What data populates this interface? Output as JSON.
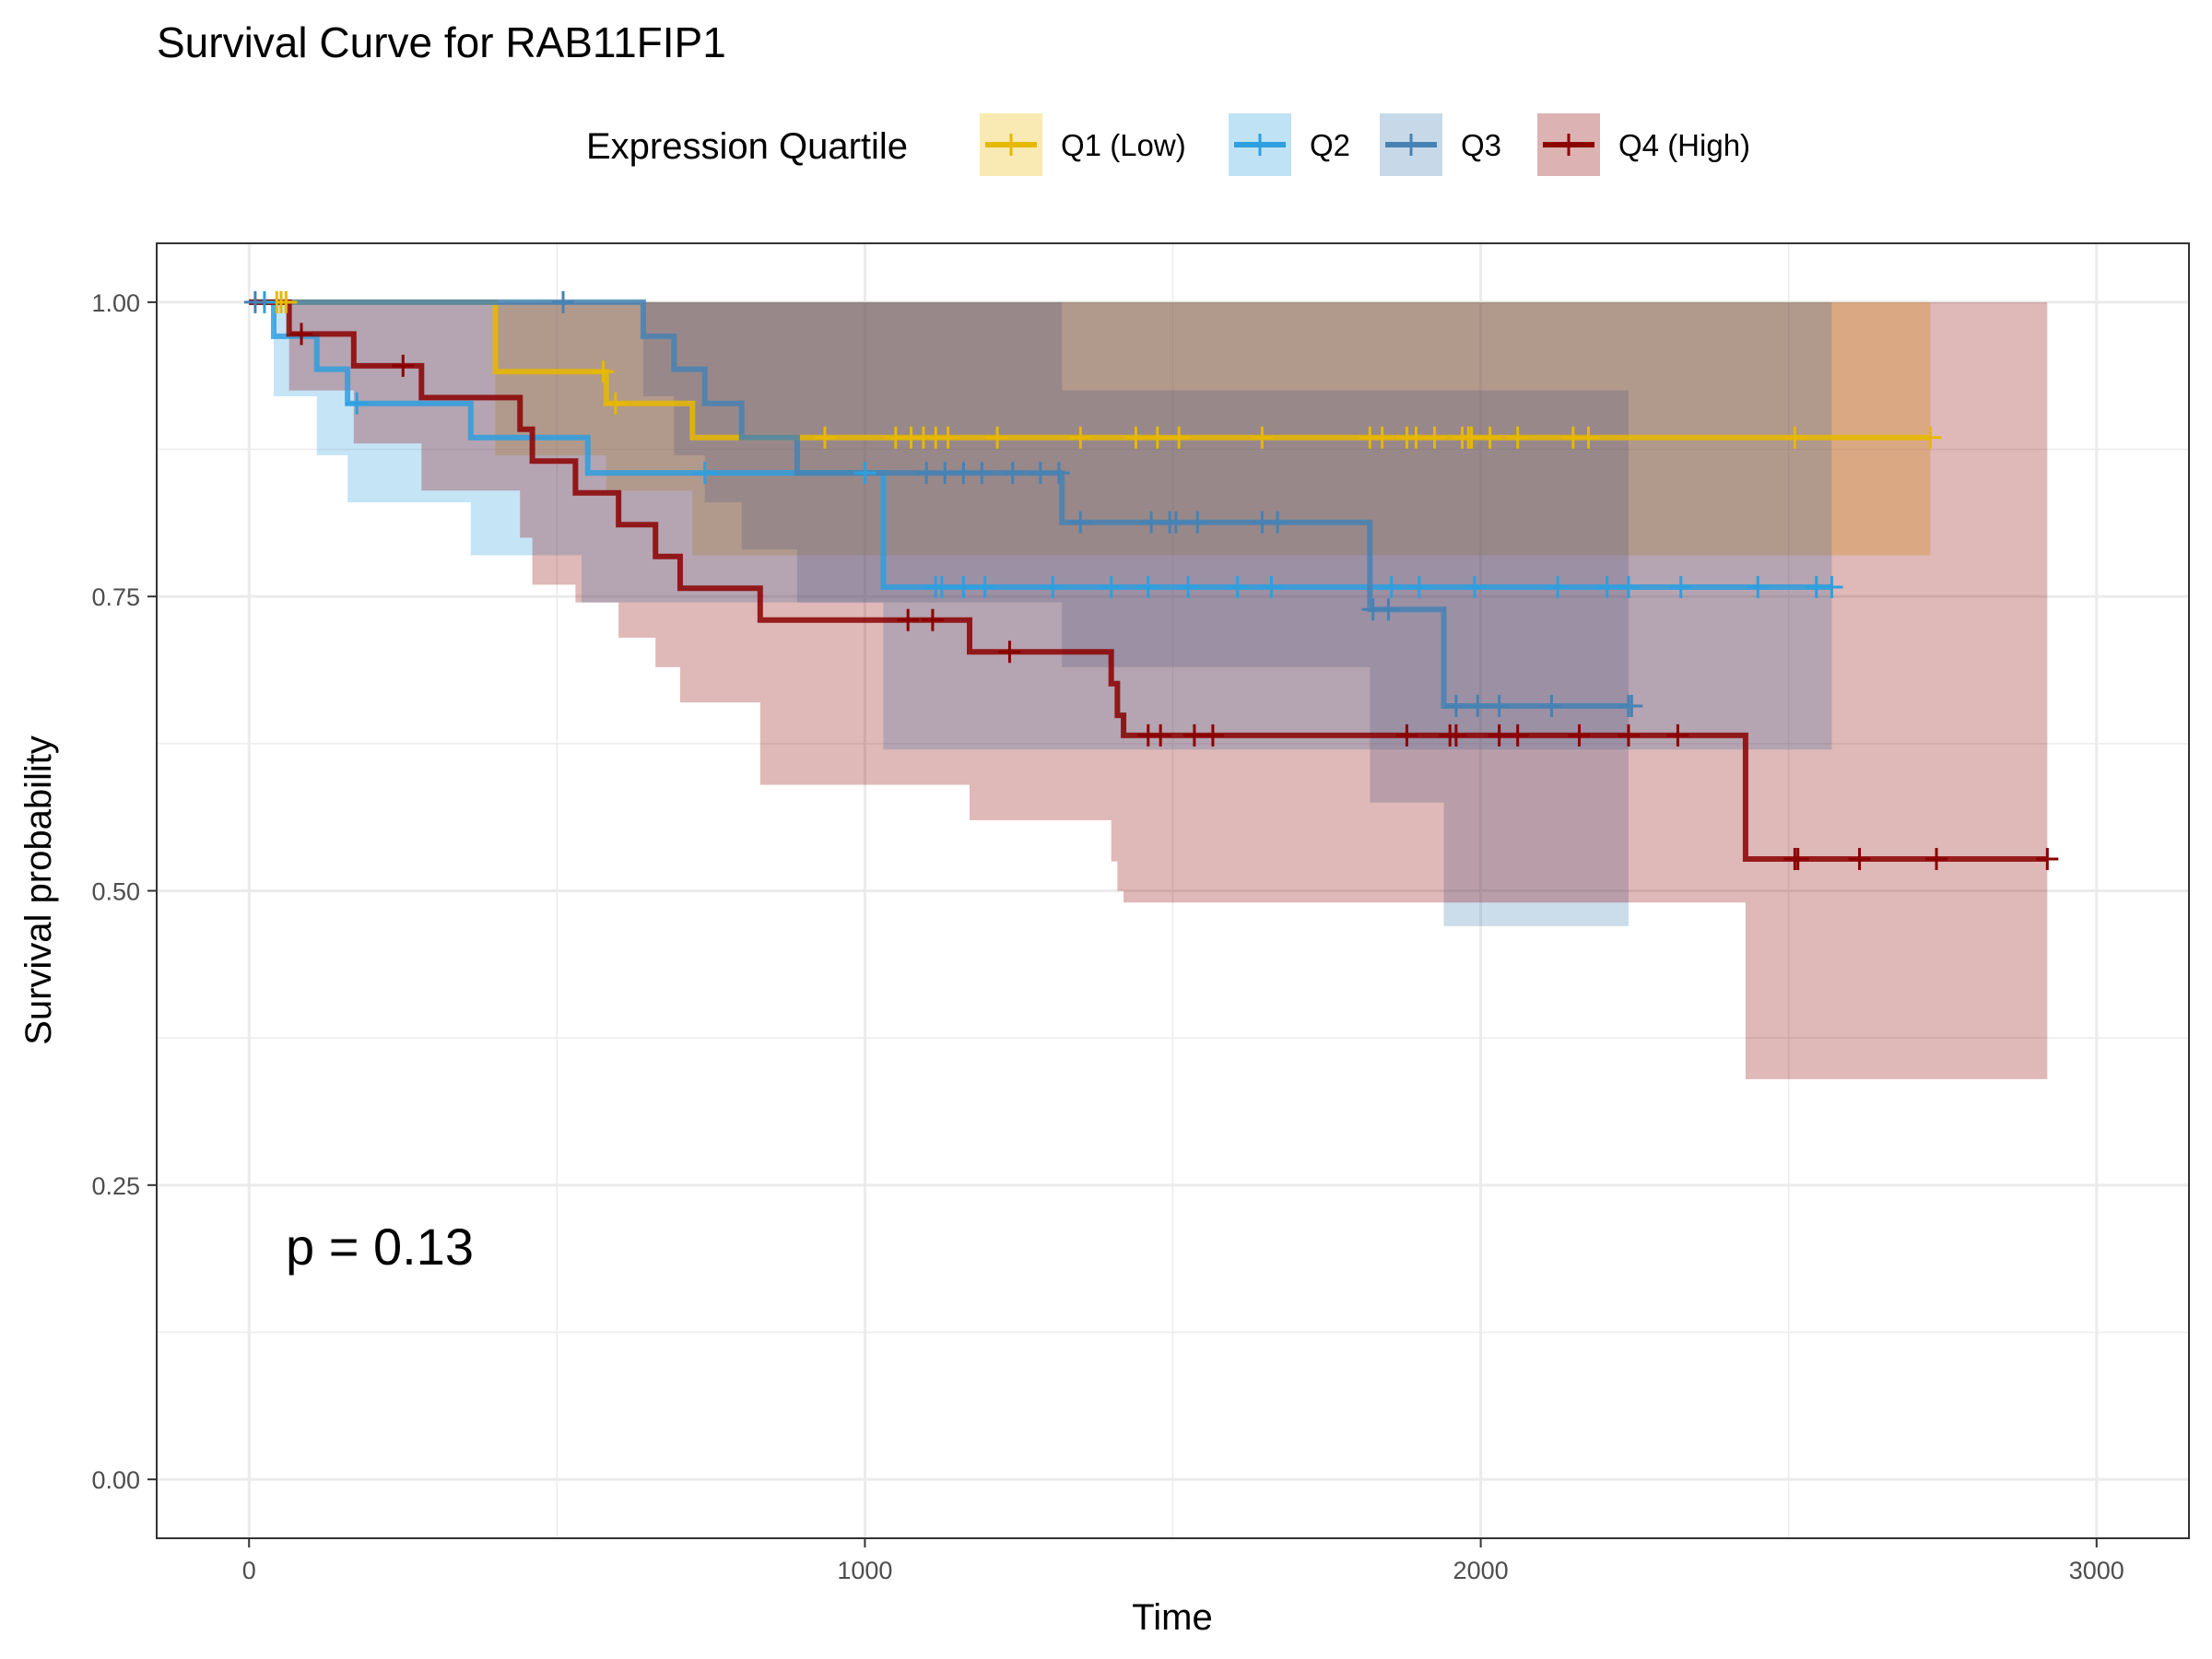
{
  "chart_data": {
    "type": "line",
    "title": "Survival Curve for RAB11FIP1",
    "xlabel": "Time",
    "ylabel": "Survival probability",
    "xlim": [
      -150,
      3150
    ],
    "ylim": [
      -0.05,
      1.05
    ],
    "x_ticks": [
      0,
      1000,
      2000,
      3000
    ],
    "x_tick_labels": [
      "0",
      "1000",
      "2000",
      "3000"
    ],
    "y_ticks": [
      0,
      0.25,
      0.5,
      0.75,
      1.0
    ],
    "y_tick_labels": [
      "0.00",
      "0.25",
      "0.50",
      "0.75",
      "1.00"
    ],
    "grid": true,
    "legend": {
      "title": "Expression Quartile",
      "position": "top"
    },
    "annotation": "p = 0.13",
    "series": [
      {
        "name": "Q1 (Low)",
        "color": "#E7B800",
        "steps": [
          [
            0,
            1.0
          ],
          [
            400,
            0.941
          ],
          [
            580,
            0.914
          ],
          [
            720,
            0.885
          ],
          [
            2730,
            0.885
          ]
        ],
        "ci_upper": [
          [
            0,
            1.0
          ],
          [
            2730,
            1.0
          ]
        ],
        "ci_lower": [
          [
            0,
            1.0
          ],
          [
            400,
            0.87
          ],
          [
            580,
            0.84
          ],
          [
            720,
            0.785
          ],
          [
            2730,
            0.785
          ]
        ],
        "censor": [
          45,
          52,
          60,
          575,
          595,
          935,
          1050,
          1075,
          1095,
          1115,
          1135,
          1215,
          1350,
          1440,
          1475,
          1510,
          1645,
          1820,
          1840,
          1880,
          1895,
          1925,
          1970,
          1980,
          1985,
          2015,
          2060,
          2150,
          2175,
          2510,
          2730
        ]
      },
      {
        "name": "Q2",
        "color": "#2E9FDF",
        "steps": [
          [
            0,
            1.0
          ],
          [
            40,
            0.971
          ],
          [
            110,
            0.943
          ],
          [
            160,
            0.914
          ],
          [
            360,
            0.885
          ],
          [
            550,
            0.855
          ],
          [
            820,
            0.855
          ],
          [
            1030,
            0.758
          ],
          [
            2570,
            0.758
          ]
        ],
        "ci_upper": [
          [
            0,
            1.0
          ],
          [
            2570,
            1.0
          ]
        ],
        "ci_lower": [
          [
            0,
            1.0
          ],
          [
            40,
            0.92
          ],
          [
            110,
            0.87
          ],
          [
            160,
            0.83
          ],
          [
            360,
            0.785
          ],
          [
            540,
            0.745
          ],
          [
            1030,
            0.62
          ],
          [
            2570,
            0.62
          ]
        ],
        "censor": [
          25,
          175,
          740,
          1000,
          1115,
          1125,
          1160,
          1195,
          1305,
          1400,
          1460,
          1525,
          1605,
          1660,
          1855,
          1900,
          1990,
          2125,
          2205,
          2240,
          2325,
          2450,
          2545,
          2570
        ]
      },
      {
        "name": "Q3",
        "color": "#4682B4",
        "steps": [
          [
            0,
            1.0
          ],
          [
            640,
            0.971
          ],
          [
            690,
            0.943
          ],
          [
            740,
            0.914
          ],
          [
            800,
            0.885
          ],
          [
            890,
            0.855
          ],
          [
            1320,
            0.813
          ],
          [
            1820,
            0.739
          ],
          [
            1940,
            0.657
          ],
          [
            2240,
            0.657
          ]
        ],
        "ci_upper": [
          [
            0,
            1.0
          ],
          [
            800,
            1.0
          ],
          [
            1320,
            0.925
          ],
          [
            2240,
            0.925
          ]
        ],
        "ci_lower": [
          [
            0,
            1.0
          ],
          [
            640,
            0.92
          ],
          [
            690,
            0.87
          ],
          [
            740,
            0.83
          ],
          [
            800,
            0.79
          ],
          [
            890,
            0.745
          ],
          [
            1320,
            0.69
          ],
          [
            1820,
            0.575
          ],
          [
            1940,
            0.47
          ],
          [
            2240,
            0.47
          ]
        ],
        "censor": [
          10,
          510,
          1100,
          1130,
          1160,
          1190,
          1240,
          1285,
          1315,
          1350,
          1465,
          1495,
          1505,
          1540,
          1645,
          1670,
          1825,
          1850,
          1960,
          1995,
          2030,
          2115,
          2240,
          2245
        ]
      },
      {
        "name": "Q4 (High)",
        "color": "#8B0000",
        "steps": [
          [
            0,
            1.0
          ],
          [
            65,
            0.973
          ],
          [
            170,
            0.946
          ],
          [
            280,
            0.919
          ],
          [
            440,
            0.892
          ],
          [
            460,
            0.865
          ],
          [
            530,
            0.838
          ],
          [
            600,
            0.811
          ],
          [
            660,
            0.784
          ],
          [
            700,
            0.757
          ],
          [
            830,
            0.73
          ],
          [
            1170,
            0.703
          ],
          [
            1400,
            0.676
          ],
          [
            1410,
            0.649
          ],
          [
            1420,
            0.632
          ],
          [
            2420,
            0.632
          ],
          [
            2430,
            0.527
          ],
          [
            2920,
            0.527
          ]
        ],
        "ci_upper": [
          [
            0,
            1.0
          ],
          [
            2430,
            1.0
          ]
        ],
        "ci_lower": [
          [
            0,
            1.0
          ],
          [
            65,
            0.925
          ],
          [
            170,
            0.88
          ],
          [
            280,
            0.84
          ],
          [
            440,
            0.8
          ],
          [
            460,
            0.76
          ],
          [
            530,
            0.745
          ],
          [
            600,
            0.715
          ],
          [
            660,
            0.69
          ],
          [
            700,
            0.66
          ],
          [
            830,
            0.59
          ],
          [
            1170,
            0.56
          ],
          [
            1400,
            0.525
          ],
          [
            1410,
            0.5
          ],
          [
            1420,
            0.49
          ],
          [
            2430,
            0.34
          ],
          [
            2920,
            0.34
          ]
        ],
        "censor": [
          85,
          250,
          1070,
          1110,
          1235,
          1460,
          1480,
          1535,
          1565,
          1880,
          1950,
          1960,
          2030,
          2060,
          2160,
          2240,
          2320,
          2510,
          2515,
          2615,
          2740,
          2920
        ]
      }
    ]
  }
}
